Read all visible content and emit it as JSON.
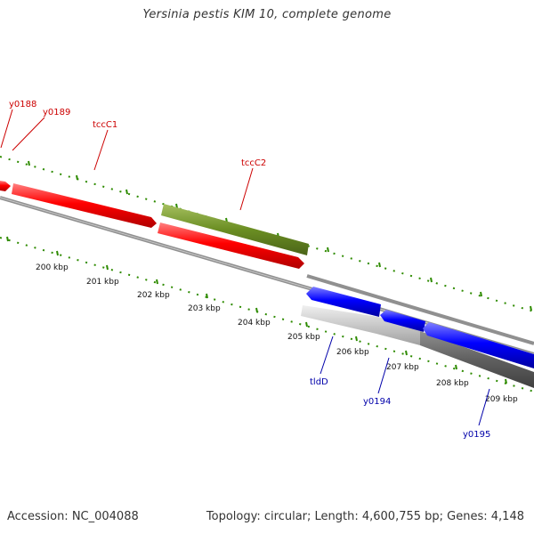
{
  "title": "Yersinia pestis KIM 10, complete genome",
  "accession": "Accession: NC_004088",
  "summary": "Topology: circular; Length: 4,600,755 bp; Genes: 4,148",
  "colors": {
    "forward_gene": "#ff0000",
    "reverse_gene": "#0000ff",
    "feature_green": "#6b8e23",
    "backbone": "#808080",
    "tick": "#2e8b00",
    "label_red": "#cc0000",
    "label_blue": "#0000aa"
  },
  "kbp_labels": [
    "200 kbp",
    "201 kbp",
    "202 kbp",
    "203 kbp",
    "204 kbp",
    "205 kbp",
    "206 kbp",
    "207 kbp",
    "208 kbp",
    "209 kbp"
  ],
  "gene_labels": {
    "y0188": "y0188",
    "y0189": "y0189",
    "tccC1": "tccC1",
    "tccC2": "tccC2",
    "tldD": "tldD",
    "y0194": "y0194",
    "y0195": "y0195"
  }
}
